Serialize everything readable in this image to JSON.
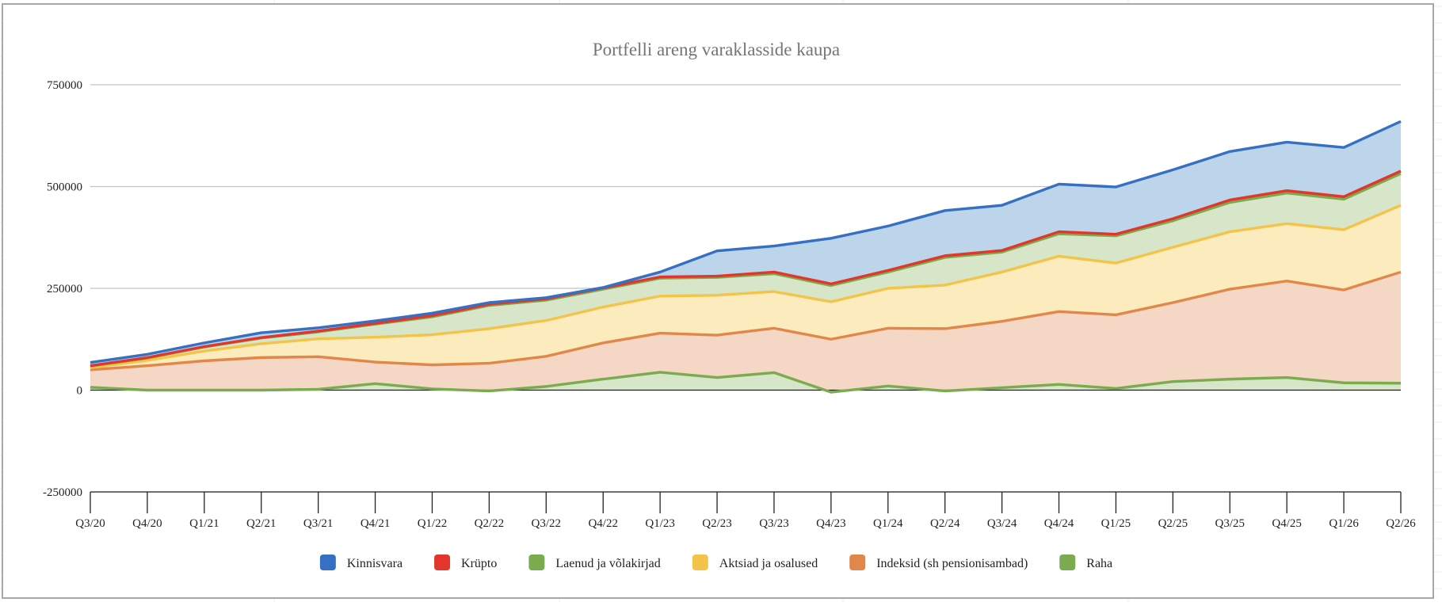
{
  "chart_data": {
    "type": "area",
    "stacked": true,
    "title": "Portfelli areng varaklasside kaupa",
    "xlabel": "",
    "ylabel": "",
    "ylim": [
      -250000,
      750000
    ],
    "yticks": [
      -250000,
      0,
      250000,
      500000,
      750000
    ],
    "ytick_labels": [
      "-250000",
      "0",
      "250000",
      "500000",
      "750000"
    ],
    "grid": true,
    "legend_position": "bottom",
    "categories": [
      "Q3/20",
      "Q4/20",
      "Q1/21",
      "Q2/21",
      "Q3/21",
      "Q4/21",
      "Q1/22",
      "Q2/22",
      "Q3/22",
      "Q4/22",
      "Q1/23",
      "Q2/23",
      "Q3/23",
      "Q4/23",
      "Q1/24",
      "Q2/24",
      "Q3/24",
      "Q4/24",
      "Q1/25",
      "Q2/25",
      "Q3/25",
      "Q4/25",
      "Q1/26",
      "Q2/26"
    ],
    "legend_order": [
      "Kinnisvara",
      "Krüpto",
      "Laenud ja võlakirjad",
      "Aktsiad ja osalused",
      "Indeksid (sh pensionisambad)",
      "Raha"
    ],
    "series": [
      {
        "name": "Raha",
        "color": "#7aab4e",
        "fill": "#d7e6c8",
        "values": [
          7000,
          0,
          0,
          0,
          2000,
          16000,
          3000,
          -2000,
          9000,
          27000,
          44000,
          31000,
          43000,
          -5000,
          10000,
          -2000,
          6000,
          14000,
          4000,
          21000,
          27000,
          31000,
          18000,
          17000
        ]
      },
      {
        "name": "Indeksid (sh pensionisambad)",
        "color": "#e2874a",
        "fill": "#f4d7c4",
        "values": [
          43000,
          60000,
          72000,
          80000,
          80000,
          53000,
          59000,
          68000,
          74000,
          89000,
          96000,
          104000,
          109000,
          130000,
          142000,
          153000,
          163000,
          179000,
          181000,
          194000,
          221000,
          237000,
          228000,
          273000
        ]
      },
      {
        "name": "Aktsiad ja osalused",
        "color": "#f4c34a",
        "fill": "#fcecbd",
        "values": [
          5000,
          13000,
          24000,
          34000,
          44000,
          61000,
          74000,
          85000,
          88000,
          88000,
          91000,
          98000,
          90000,
          92000,
          98000,
          107000,
          121000,
          136000,
          127000,
          136000,
          141000,
          141000,
          148000,
          164000
        ]
      },
      {
        "name": "Laenud ja võlakirjad",
        "color": "#7aab4e",
        "fill": "#d7e6c8",
        "values": [
          4000,
          6000,
          10000,
          14000,
          17000,
          32000,
          44000,
          57000,
          50000,
          44000,
          44000,
          44000,
          44000,
          40000,
          40000,
          68000,
          49000,
          55000,
          67000,
          65000,
          72000,
          75000,
          75000,
          78000
        ]
      },
      {
        "name": "Krüpto",
        "color": "#e2362b",
        "fill": "#f4c9c2",
        "values": [
          1000,
          1000,
          1000,
          1000,
          2000,
          2000,
          3000,
          3000,
          3000,
          3000,
          3000,
          3000,
          4000,
          4000,
          4000,
          4000,
          4000,
          5000,
          4000,
          5000,
          6000,
          6000,
          6000,
          6000
        ]
      },
      {
        "name": "Kinnisvara",
        "color": "#3570c2",
        "fill": "#bcd5ea",
        "values": [
          8000,
          8000,
          9000,
          12000,
          8000,
          6000,
          6000,
          4000,
          3000,
          1000,
          12000,
          62000,
          64000,
          112000,
          109000,
          111000,
          111000,
          117000,
          116000,
          120000,
          119000,
          119000,
          121000,
          122000
        ]
      }
    ]
  }
}
